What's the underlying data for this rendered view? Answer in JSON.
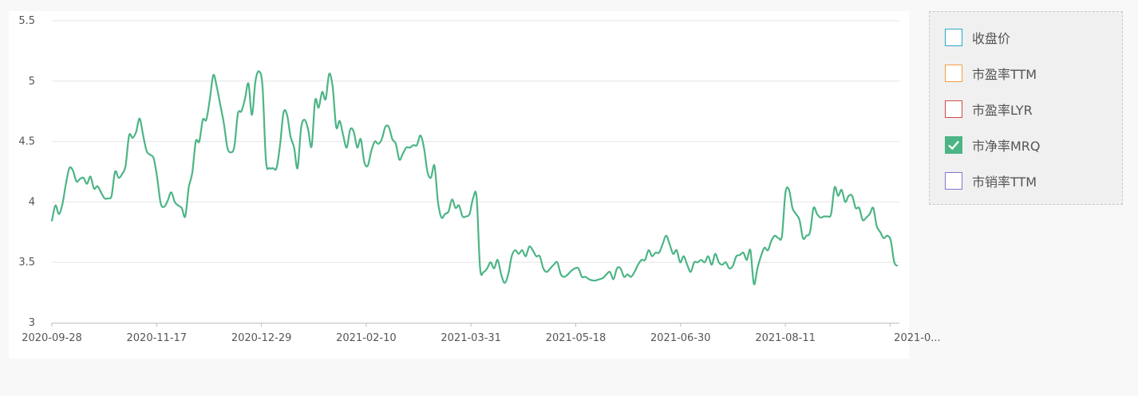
{
  "legend": {
    "items": [
      {
        "label": "收盘价",
        "color": "#2aa8c4",
        "checked": false
      },
      {
        "label": "市盈率TTM",
        "color": "#f0a040",
        "checked": false
      },
      {
        "label": "市盈率LYR",
        "color": "#d04a4a",
        "checked": false
      },
      {
        "label": "市净率MRQ",
        "color": "#4cb585",
        "checked": true
      },
      {
        "label": "市销率TTM",
        "color": "#7f78c8",
        "checked": false
      }
    ]
  },
  "chart_data": {
    "type": "line",
    "y_ticks": [
      "3",
      "3.5",
      "4",
      "4.5",
      "5",
      "5.5"
    ],
    "ylim": [
      3,
      5.5
    ],
    "x_ticks": [
      "2020-09-28",
      "2020-11-17",
      "2020-12-29",
      "2021-02-10",
      "2021-03-31",
      "2021-05-18",
      "2021-06-30",
      "2021-08-11",
      "2021-0..."
    ],
    "grid": true,
    "line_color": "#4cb585",
    "series": [
      {
        "values": [
          3.84,
          3.97,
          3.9,
          3.98,
          4.15,
          4.28,
          4.26,
          4.17,
          4.19,
          4.2,
          4.15,
          4.21,
          4.11,
          4.13,
          4.08,
          4.03,
          4.03,
          4.05,
          4.25,
          4.2,
          4.23,
          4.3,
          4.55,
          4.53,
          4.58,
          4.69,
          4.55,
          4.42,
          4.39,
          4.36,
          4.2,
          3.99,
          3.96,
          4.01,
          4.08,
          4.0,
          3.97,
          3.95,
          3.88,
          4.12,
          4.24,
          4.5,
          4.5,
          4.68,
          4.68,
          4.85,
          5.05,
          4.95,
          4.8,
          4.65,
          4.45,
          4.41,
          4.46,
          4.73,
          4.75,
          4.85,
          4.98,
          4.72,
          5.0,
          5.08,
          4.96,
          4.34,
          4.28,
          4.28,
          4.28,
          4.47,
          4.74,
          4.72,
          4.54,
          4.45,
          4.28,
          4.61,
          4.68,
          4.6,
          4.46,
          4.84,
          4.78,
          4.91,
          4.85,
          5.06,
          4.95,
          4.62,
          4.67,
          4.55,
          4.45,
          4.6,
          4.58,
          4.45,
          4.52,
          4.33,
          4.3,
          4.42,
          4.5,
          4.48,
          4.52,
          4.62,
          4.62,
          4.52,
          4.48,
          4.35,
          4.4,
          4.45,
          4.45,
          4.47,
          4.47,
          4.55,
          4.45,
          4.25,
          4.2,
          4.3,
          4.0,
          3.87,
          3.9,
          3.92,
          4.02,
          3.95,
          3.97,
          3.88,
          3.88,
          3.9,
          4.03,
          4.04,
          3.45,
          3.42,
          3.45,
          3.5,
          3.45,
          3.52,
          3.4,
          3.33,
          3.4,
          3.55,
          3.6,
          3.57,
          3.6,
          3.55,
          3.63,
          3.6,
          3.55,
          3.55,
          3.45,
          3.42,
          3.45,
          3.48,
          3.5,
          3.4,
          3.38,
          3.4,
          3.43,
          3.45,
          3.45,
          3.38,
          3.38,
          3.36,
          3.35,
          3.35,
          3.36,
          3.37,
          3.4,
          3.42,
          3.36,
          3.45,
          3.45,
          3.38,
          3.4,
          3.38,
          3.42,
          3.48,
          3.52,
          3.52,
          3.6,
          3.55,
          3.58,
          3.58,
          3.65,
          3.72,
          3.65,
          3.57,
          3.6,
          3.5,
          3.55,
          3.48,
          3.42,
          3.5,
          3.5,
          3.52,
          3.5,
          3.55,
          3.48,
          3.57,
          3.5,
          3.48,
          3.5,
          3.45,
          3.47,
          3.55,
          3.56,
          3.58,
          3.52,
          3.6,
          3.32,
          3.45,
          3.55,
          3.62,
          3.6,
          3.68,
          3.72,
          3.7,
          3.72,
          4.08,
          4.1,
          3.95,
          3.9,
          3.85,
          3.7,
          3.72,
          3.75,
          3.95,
          3.9,
          3.87,
          3.88,
          3.88,
          3.9,
          4.12,
          4.05,
          4.1,
          4.0,
          4.05,
          4.05,
          3.95,
          3.95,
          3.85,
          3.87,
          3.9,
          3.95,
          3.8,
          3.75,
          3.7,
          3.72,
          3.68,
          3.5,
          3.47
        ]
      }
    ]
  }
}
